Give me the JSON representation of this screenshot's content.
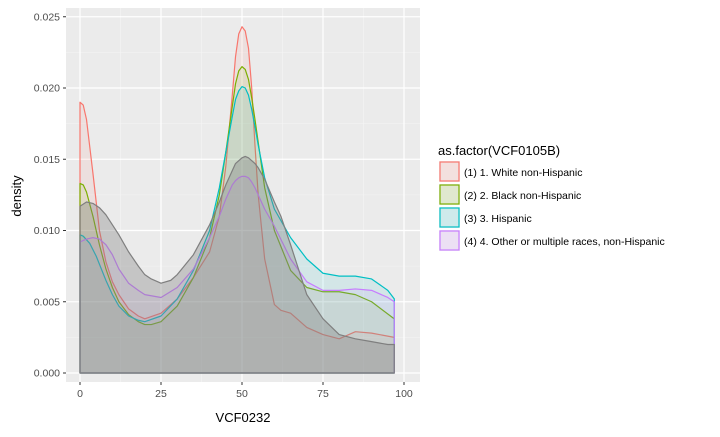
{
  "chart_data": {
    "type": "area",
    "xlabel": "VCF0232",
    "ylabel": "density",
    "xlim": [
      0,
      97
    ],
    "ylim": [
      0,
      0.025
    ],
    "x_ticks": [
      0,
      25,
      50,
      75,
      100
    ],
    "x_tick_labels": [
      "0",
      "25",
      "50",
      "75",
      "100"
    ],
    "y_ticks": [
      0,
      0.005,
      0.01,
      0.015,
      0.02,
      0.025
    ],
    "y_tick_labels": [
      "0.000",
      "0.005",
      "0.010",
      "0.015",
      "0.020",
      "0.025"
    ],
    "grid": true,
    "legend": {
      "title": "as.factor(VCF0105B)",
      "position": "right",
      "entries": [
        "(1) 1. White non-Hispanic",
        "(2) 2. Black non-Hispanic",
        "(3) 3. Hispanic",
        "(4) 4. Other or multiple races, non-Hispanic"
      ]
    },
    "series": [
      {
        "name": "(1) 1. White non-Hispanic",
        "color": "#F8766D",
        "x": [
          0,
          1,
          2,
          4,
          6,
          8,
          10,
          12,
          15,
          18,
          20,
          25,
          30,
          35,
          40,
          43,
          45,
          47,
          48,
          49,
          50,
          51,
          52,
          53,
          54,
          55,
          57,
          60,
          62,
          65,
          70,
          75,
          80,
          85,
          90,
          97
        ],
        "y": [
          0.019,
          0.0188,
          0.0178,
          0.014,
          0.01,
          0.0078,
          0.0064,
          0.0055,
          0.0045,
          0.004,
          0.0038,
          0.0042,
          0.0052,
          0.0067,
          0.0085,
          0.011,
          0.0145,
          0.0195,
          0.0222,
          0.0238,
          0.0243,
          0.024,
          0.0228,
          0.02,
          0.016,
          0.0125,
          0.008,
          0.0048,
          0.0044,
          0.0042,
          0.0032,
          0.0027,
          0.0024,
          0.0029,
          0.0028,
          0.0025
        ]
      },
      {
        "name": "(2) 2. Black non-Hispanic",
        "color": "#7CAE00",
        "x": [
          0,
          1,
          2,
          4,
          6,
          8,
          10,
          12,
          15,
          18,
          20,
          22,
          25,
          30,
          35,
          40,
          43,
          45,
          47,
          48,
          49,
          50,
          51,
          52,
          53,
          54,
          55,
          57,
          60,
          65,
          70,
          75,
          80,
          85,
          90,
          97
        ],
        "y": [
          0.0133,
          0.0132,
          0.0127,
          0.011,
          0.009,
          0.0073,
          0.006,
          0.005,
          0.0041,
          0.0036,
          0.0034,
          0.0034,
          0.0036,
          0.0047,
          0.0067,
          0.0095,
          0.0125,
          0.0155,
          0.0187,
          0.0203,
          0.0212,
          0.0215,
          0.0213,
          0.0206,
          0.0193,
          0.0178,
          0.0162,
          0.013,
          0.01,
          0.0072,
          0.006,
          0.0057,
          0.0057,
          0.0055,
          0.005,
          0.0038
        ]
      },
      {
        "name": "(3) 3. Hispanic",
        "color": "#00BFC4",
        "x": [
          0,
          1,
          3,
          5,
          8,
          10,
          12,
          15,
          18,
          20,
          25,
          30,
          35,
          40,
          43,
          45,
          47,
          48,
          49,
          50,
          51,
          52,
          53,
          54,
          55,
          57,
          60,
          65,
          70,
          75,
          80,
          85,
          90,
          95,
          97
        ],
        "y": [
          0.0097,
          0.0096,
          0.0091,
          0.0082,
          0.0065,
          0.0055,
          0.0047,
          0.004,
          0.0037,
          0.0036,
          0.004,
          0.0052,
          0.0072,
          0.01,
          0.013,
          0.0155,
          0.018,
          0.0192,
          0.0198,
          0.0201,
          0.02,
          0.0195,
          0.0185,
          0.0173,
          0.016,
          0.0137,
          0.0115,
          0.0095,
          0.008,
          0.007,
          0.0068,
          0.0068,
          0.0066,
          0.0058,
          0.0052
        ]
      },
      {
        "name": "(4) 4. Other or multiple races, non-Hispanic",
        "color": "#C77CFF",
        "x": [
          0,
          2,
          4,
          6,
          8,
          10,
          12,
          15,
          18,
          20,
          25,
          30,
          35,
          40,
          43,
          45,
          47,
          48,
          49,
          50,
          51,
          52,
          53,
          54,
          55,
          57,
          60,
          65,
          70,
          75,
          80,
          85,
          90,
          95,
          97
        ],
        "y": [
          0.0092,
          0.0094,
          0.0095,
          0.0094,
          0.009,
          0.0083,
          0.0073,
          0.0063,
          0.0058,
          0.0055,
          0.0053,
          0.006,
          0.0073,
          0.0095,
          0.011,
          0.0122,
          0.0132,
          0.0135,
          0.0137,
          0.0138,
          0.0138,
          0.0137,
          0.0134,
          0.013,
          0.0125,
          0.0115,
          0.0103,
          0.008,
          0.0064,
          0.0058,
          0.0058,
          0.0059,
          0.0058,
          0.0053,
          0.005
        ]
      },
      {
        "name": "",
        "color": "#7F7F7F",
        "x": [
          0,
          2,
          4,
          6,
          8,
          10,
          12,
          15,
          18,
          20,
          22,
          25,
          28,
          30,
          35,
          40,
          43,
          45,
          48,
          50,
          51,
          52,
          54,
          55,
          57,
          60,
          62,
          65,
          70,
          75,
          80,
          85,
          90,
          95,
          97
        ],
        "y": [
          0.0117,
          0.012,
          0.0119,
          0.0116,
          0.0111,
          0.0104,
          0.0097,
          0.0085,
          0.0075,
          0.0069,
          0.0066,
          0.0063,
          0.0065,
          0.0069,
          0.0083,
          0.0104,
          0.012,
          0.0132,
          0.0147,
          0.0151,
          0.0152,
          0.0151,
          0.0147,
          0.0144,
          0.0136,
          0.012,
          0.011,
          0.009,
          0.0055,
          0.0038,
          0.0027,
          0.0024,
          0.0022,
          0.002,
          0.002
        ]
      }
    ]
  }
}
